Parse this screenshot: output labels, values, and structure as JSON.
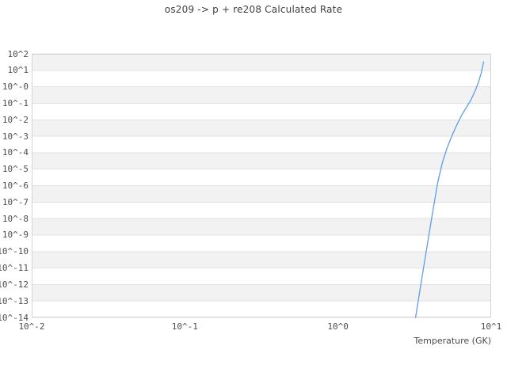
{
  "chart_data": {
    "type": "line",
    "title": "os209 -> p + re208 Calculated Rate",
    "xlabel": "Temperature (GK)",
    "ylabel": "",
    "x_scale": "log",
    "y_scale": "log",
    "xlim": [
      0.01,
      10
    ],
    "ylim": [
      1e-14,
      100
    ],
    "grid": "horizontal-decade-bands",
    "legend_position": "none",
    "x_ticks": [
      {
        "value": 0.01,
        "label": "10^-2"
      },
      {
        "value": 0.1,
        "label": "10^-1"
      },
      {
        "value": 1,
        "label": "10^0"
      },
      {
        "value": 10,
        "label": "10^1"
      }
    ],
    "y_ticks": [
      {
        "exp": 2,
        "label": "10^2"
      },
      {
        "exp": 1,
        "label": "10^1"
      },
      {
        "exp": 0,
        "label": "10^-0"
      },
      {
        "exp": -1,
        "label": "10^-1"
      },
      {
        "exp": -2,
        "label": "10^-2"
      },
      {
        "exp": -3,
        "label": "10^-3"
      },
      {
        "exp": -4,
        "label": "10^-4"
      },
      {
        "exp": -5,
        "label": "10^-5"
      },
      {
        "exp": -6,
        "label": "10^-6"
      },
      {
        "exp": -7,
        "label": "10^-7"
      },
      {
        "exp": -8,
        "label": "10^-8"
      },
      {
        "exp": -9,
        "label": "10^-9"
      },
      {
        "exp": -10,
        "label": "10^-10"
      },
      {
        "exp": -11,
        "label": "10^-11"
      },
      {
        "exp": -12,
        "label": "10^-12"
      },
      {
        "exp": -13,
        "label": "10^-13"
      },
      {
        "exp": -14,
        "label": "10^-14"
      }
    ],
    "series": [
      {
        "name": "calculated rate",
        "color": "#5d9fe3",
        "points": [
          [
            3.21,
            1e-14
          ],
          [
            3.49,
            1.3e-12
          ],
          [
            3.79,
            1.4e-10
          ],
          [
            4.12,
            1.6e-08
          ],
          [
            4.48,
            1.6e-06
          ],
          [
            4.81,
            2.6e-05
          ],
          [
            5.17,
            0.00021
          ],
          [
            5.55,
            0.0011
          ],
          [
            5.96,
            0.0047
          ],
          [
            6.4,
            0.018
          ],
          [
            6.87,
            0.054
          ],
          [
            7.38,
            0.16
          ],
          [
            7.93,
            0.69
          ],
          [
            8.32,
            2.3
          ],
          [
            8.62,
            7.0
          ],
          [
            8.93,
            33
          ]
        ]
      }
    ],
    "colors": {
      "background": "#ffffff",
      "band": "#f2f2f2",
      "gridline": "#e2e2e2",
      "border": "#d5d5d5",
      "tick_text": "#4d4d4d",
      "title_text": "#3f3f3f"
    }
  }
}
